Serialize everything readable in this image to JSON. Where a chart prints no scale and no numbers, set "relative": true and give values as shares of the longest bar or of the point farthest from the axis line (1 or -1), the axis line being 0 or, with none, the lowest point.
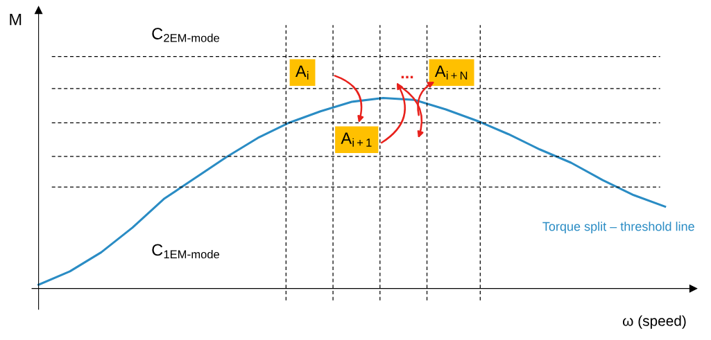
{
  "chart_data": {
    "type": "line",
    "relative": true,
    "xlabel": "ω (speed)",
    "ylabel": "M",
    "categories": [
      null,
      null,
      null,
      null,
      null,
      null,
      null,
      null,
      null,
      null,
      null,
      null,
      null,
      null,
      null,
      null,
      null,
      null,
      null,
      null,
      null
    ],
    "series": [
      {
        "name": "Torque split – threshold line",
        "color": "#2a8cc4",
        "values": [
          0.02,
          0.09,
          0.19,
          0.32,
          0.47,
          0.58,
          0.69,
          0.79,
          0.87,
          0.93,
          0.98,
          1.0,
          0.99,
          0.94,
          0.88,
          0.81,
          0.73,
          0.66,
          0.57,
          0.49,
          0.43
        ]
      }
    ],
    "ref_lines": [
      {
        "axis": "y",
        "value": 1.217,
        "color": "#000000",
        "line_style": "dashed"
      },
      {
        "axis": "y",
        "value": 1.049,
        "color": "#000000",
        "line_style": "dashed"
      },
      {
        "axis": "y",
        "value": 0.869,
        "color": "#000000",
        "line_style": "dashed"
      },
      {
        "axis": "y",
        "value": 0.693,
        "color": "#000000",
        "line_style": "dashed"
      },
      {
        "axis": "y",
        "value": 0.532,
        "color": "#000000",
        "line_style": "dashed"
      }
    ],
    "annotations": [
      "A$_{i}$",
      "A$_{i+1}$",
      "A$_{i+N}$",
      "...",
      "C$_{2EM-mode}$",
      "C$_{1EM-mode}$"
    ],
    "legend": false,
    "marker": "none",
    "line_style": "solid"
  }
}
